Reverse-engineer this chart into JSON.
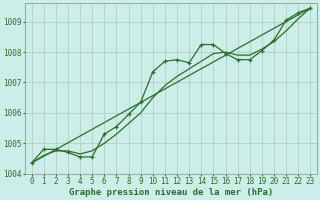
{
  "title": "Graphe pression niveau de la mer (hPa)",
  "bg_color": "#cceee8",
  "grid_color": "#b0c8c4",
  "line_color": "#2d6e2d",
  "ylim": [
    1004.0,
    1009.6
  ],
  "xlim": [
    -0.5,
    23.5
  ],
  "yticks": [
    1004,
    1005,
    1006,
    1007,
    1008,
    1009
  ],
  "xticks": [
    0,
    1,
    2,
    3,
    4,
    5,
    6,
    7,
    8,
    9,
    10,
    11,
    12,
    13,
    14,
    15,
    16,
    17,
    18,
    19,
    20,
    21,
    22,
    23
  ],
  "series1_x": [
    0,
    1,
    2,
    3,
    4,
    5,
    6,
    7,
    8,
    9,
    10,
    11,
    12,
    13,
    14,
    15,
    16,
    17,
    18,
    19,
    20,
    21,
    22,
    23
  ],
  "series1_y": [
    1004.35,
    1004.8,
    1004.8,
    1004.7,
    1004.55,
    1004.55,
    1005.3,
    1005.55,
    1005.95,
    1006.35,
    1007.35,
    1007.7,
    1007.75,
    1007.65,
    1008.25,
    1008.25,
    1007.95,
    1007.75,
    1007.75,
    1008.05,
    1008.4,
    1009.05,
    1009.3,
    1009.45
  ],
  "series2_x": [
    0,
    23
  ],
  "series2_y": [
    1004.35,
    1009.45
  ],
  "series3_x": [
    0,
    1,
    2,
    3,
    4,
    5,
    6,
    7,
    8,
    9,
    10,
    11,
    12,
    13,
    14,
    15,
    16,
    17,
    18,
    19,
    20,
    21,
    22,
    23
  ],
  "series3_y": [
    1004.35,
    1004.6,
    1004.75,
    1004.75,
    1004.65,
    1004.75,
    1005.0,
    1005.3,
    1005.65,
    1006.0,
    1006.5,
    1006.9,
    1007.2,
    1007.45,
    1007.7,
    1007.95,
    1008.0,
    1007.9,
    1007.9,
    1008.1,
    1008.35,
    1008.7,
    1009.1,
    1009.45
  ],
  "tick_fontsize": 5.5,
  "xlabel_fontsize": 6.5
}
